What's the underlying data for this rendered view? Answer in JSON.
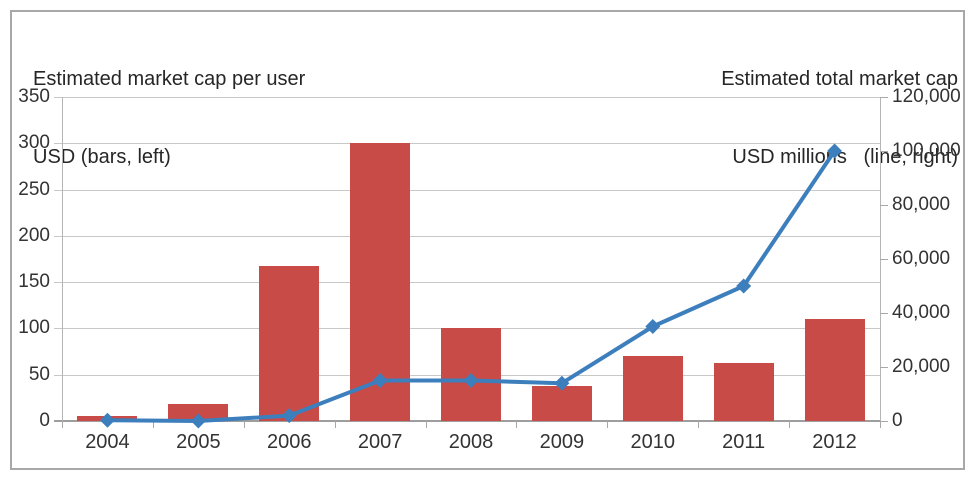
{
  "titles": {
    "left_line1": "Estimated market cap per user",
    "left_line2": "USD (bars, left)",
    "right_line1": "Estimated total market cap",
    "right_line2": "USD millions   (line, right)"
  },
  "chart_data": {
    "type": "bar",
    "subtype": "combo-bar-line-dual-axis",
    "categories": [
      "2004",
      "2005",
      "2006",
      "2007",
      "2008",
      "2009",
      "2010",
      "2011",
      "2012"
    ],
    "series": [
      {
        "name": "Estimated market cap per user USD (bars, left)",
        "type": "bar",
        "axis": "left",
        "color": "#c84b47",
        "values": [
          5,
          18,
          167,
          300,
          100,
          38,
          70,
          63,
          110
        ]
      },
      {
        "name": "Estimated total market cap USD millions (line, right)",
        "type": "line",
        "axis": "right",
        "color": "#3d7ebd",
        "marker": "diamond",
        "values": [
          300,
          0,
          2000,
          15000,
          15000,
          14000,
          35000,
          50000,
          100000
        ]
      }
    ],
    "left_axis": {
      "min": 0,
      "max": 350,
      "step": 50,
      "tick_labels": [
        "0",
        "50",
        "100",
        "150",
        "200",
        "250",
        "300",
        "350"
      ]
    },
    "right_axis": {
      "min": 0,
      "max": 120000,
      "step": 20000,
      "tick_labels": [
        "0",
        "20,000",
        "40,000",
        "60,000",
        "80,000",
        "100,000",
        "120,000"
      ]
    },
    "grid": "horizontal-on",
    "legend_position": "none",
    "colors": {
      "bar": "#c84b47",
      "line": "#3d7ebd",
      "gridline": "#c8c8c8",
      "axis_line": "#9e9e9e",
      "text": "#333333",
      "frame_border": "#a8a8a8"
    }
  }
}
